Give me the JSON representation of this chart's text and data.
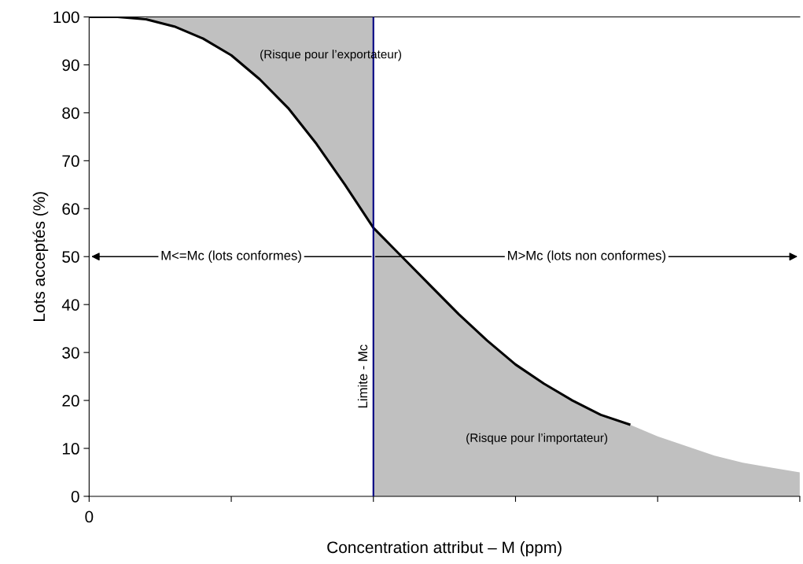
{
  "chart_data": {
    "type": "line",
    "xlabel": "Concentration attribut – M (ppm)",
    "ylabel": "Lots acceptés (%)",
    "categories": [
      "0",
      null,
      null,
      null,
      null,
      null,
      null,
      null,
      null,
      null,
      null,
      null,
      null,
      null,
      null,
      null,
      null,
      null,
      null,
      null,
      null,
      null,
      null,
      null,
      null,
      null
    ],
    "ylim": [
      0,
      100
    ],
    "yticks": [
      0,
      10,
      20,
      30,
      40,
      50,
      60,
      70,
      80,
      90,
      100
    ],
    "series": [
      {
        "type": "area",
        "color": "#c0c0c0",
        "values": [
          null,
          null,
          100,
          100,
          100,
          100,
          100,
          100,
          100,
          100,
          100,
          null,
          null,
          null,
          null,
          null,
          null,
          null,
          null,
          null,
          null,
          null,
          null,
          null,
          null,
          null
        ]
      },
      {
        "type": "area",
        "color": "#c0c0c0",
        "values": [
          null,
          null,
          null,
          null,
          null,
          null,
          null,
          null,
          null,
          null,
          56,
          50,
          44,
          38,
          32.5,
          27.5,
          23.5,
          20,
          17,
          15,
          12.5,
          10.5,
          8.5,
          7,
          6,
          5
        ]
      },
      {
        "color": "#000000",
        "values": [
          100,
          100,
          99.5,
          98,
          95.5,
          92,
          87,
          81,
          73.5,
          65,
          56,
          50,
          44,
          38,
          32.5,
          27.5,
          23.5,
          20,
          17,
          15,
          null,
          null,
          null,
          null,
          null,
          null
        ]
      }
    ],
    "annotations": [
      "(Risque pour l’exportateur)",
      "(Risque pour l’importateur)",
      "M<=Mc (lots conformes)",
      "M>Mc (lots non conformes)",
      "Limite - Mc"
    ],
    "grid": false,
    "legend": false
  }
}
